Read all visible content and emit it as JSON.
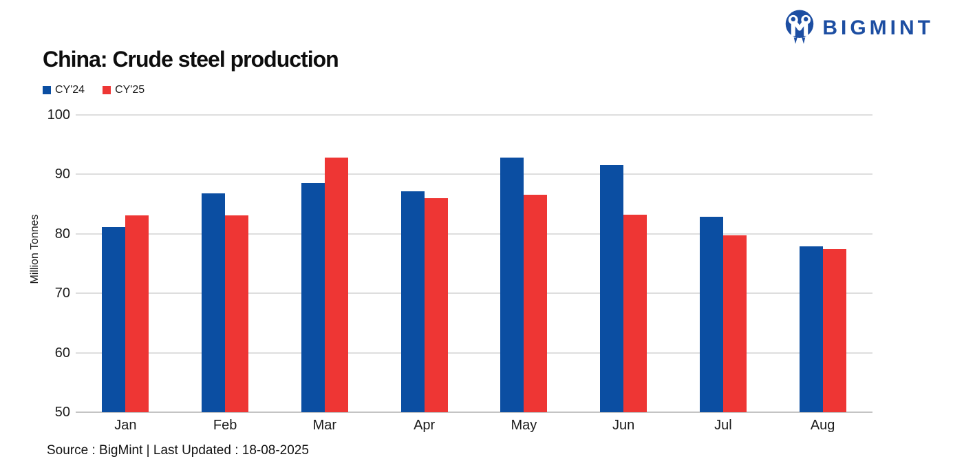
{
  "logo": {
    "text": "BIGMINT",
    "color": "#1D4EA2"
  },
  "header": {
    "title": "China: Crude steel production"
  },
  "footer": {
    "source_text": "Source : BigMint | Last Updated : 18-08-2025"
  },
  "chart_data": {
    "type": "bar",
    "title": "China: Crude steel production",
    "categories": [
      "Jan",
      "Feb",
      "Mar",
      "Apr",
      "May",
      "Jun",
      "Jul",
      "Aug"
    ],
    "series": [
      {
        "name": "CY'24",
        "color": "#0B4EA2",
        "values": [
          81.1,
          86.8,
          88.5,
          87.1,
          92.8,
          91.6,
          82.9,
          77.9
        ]
      },
      {
        "name": "CY'25",
        "color": "#EE3634",
        "values": [
          83.1,
          83.1,
          92.8,
          86.0,
          86.6,
          83.2,
          79.7,
          77.4
        ]
      }
    ],
    "xlabel": "",
    "ylabel": "Million Tonnes",
    "ylim": [
      50,
      100
    ],
    "yticks": [
      50,
      60,
      70,
      80,
      90,
      100
    ],
    "grid": true,
    "legend_position": "top-left"
  }
}
